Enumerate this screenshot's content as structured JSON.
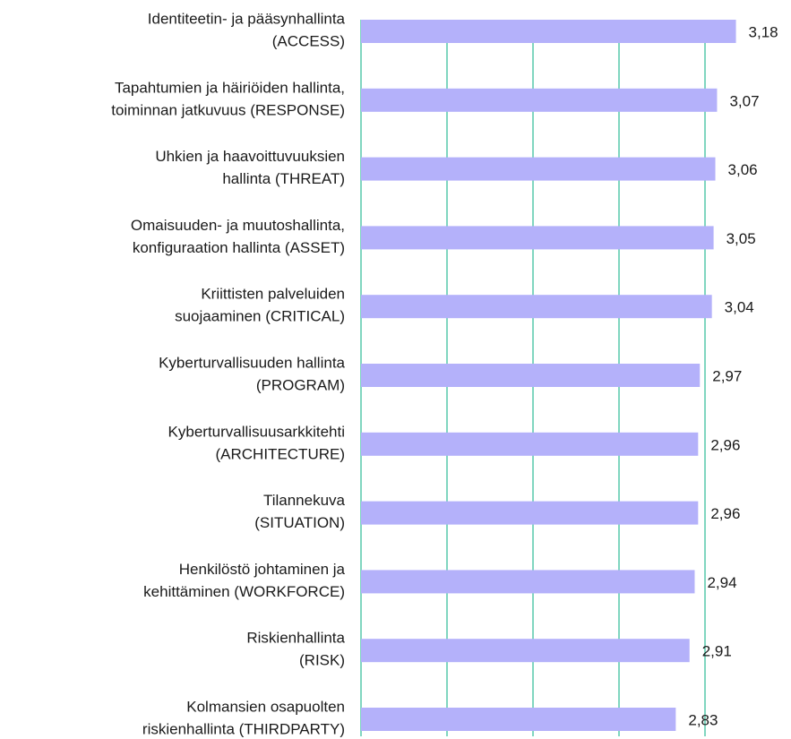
{
  "chart_data": {
    "type": "barh",
    "categories": [
      [
        "Identiteetin- ja pääsynhallinta",
        "(ACCESS)"
      ],
      [
        "Tapahtumien ja häiriöiden hallinta,",
        "toiminnan jatkuvuus (RESPONSE)"
      ],
      [
        "Uhkien ja haavoittuvuuksien",
        "hallinta (THREAT)"
      ],
      [
        "Omaisuuden- ja muutoshallinta,",
        "konfiguraation hallinta (ASSET)"
      ],
      [
        "Kriittisten palveluiden",
        "suojaaminen (CRITICAL)"
      ],
      [
        "Kyberturvallisuuden hallinta",
        "(PROGRAM)"
      ],
      [
        "Kyberturvallisuusarkkitehti",
        "(ARCHITECTURE)"
      ],
      [
        "Tilannekuva",
        "(SITUATION)"
      ],
      [
        "Henkilöstö johtaminen ja",
        "kehittäminen (WORKFORCE)"
      ],
      [
        "Riskienhallinta",
        "(RISK)"
      ],
      [
        "Kolmansien osapuolten",
        "riskienhallinta (THIRDPARTY)"
      ]
    ],
    "values": [
      3.18,
      3.07,
      3.06,
      3.05,
      3.04,
      2.97,
      2.96,
      2.96,
      2.94,
      2.91,
      2.83
    ],
    "value_labels": [
      "3,18",
      "3,07",
      "3,06",
      "3,05",
      "3,04",
      "2,97",
      "2,96",
      "2,96",
      "2,94",
      "2,91",
      "2,83"
    ],
    "color": "#b4b1fa",
    "grid_color": "#3dbf9f",
    "xlim": [
      1,
      3.5
    ],
    "xticks": [
      1,
      1.5,
      2,
      2.5,
      3
    ],
    "grid": true
  }
}
